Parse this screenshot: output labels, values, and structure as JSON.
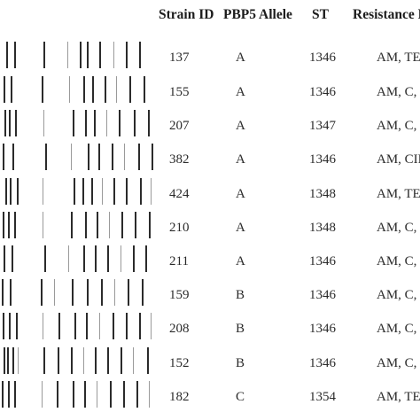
{
  "table": {
    "headers": {
      "strain_id": "Strain ID",
      "pbp5_allele": "PBP5 Allele",
      "st": "ST",
      "resistance": "Resistance P"
    },
    "rows": [
      {
        "strain_id": "137",
        "pbp5_allele": "A",
        "st": "1346",
        "resistance": "AM, TE"
      },
      {
        "strain_id": "155",
        "pbp5_allele": "A",
        "st": "1346",
        "resistance": "AM, C,"
      },
      {
        "strain_id": "207",
        "pbp5_allele": "A",
        "st": "1347",
        "resistance": "AM, C, T"
      },
      {
        "strain_id": "382",
        "pbp5_allele": "A",
        "st": "1346",
        "resistance": "AM, CIP"
      },
      {
        "strain_id": "424",
        "pbp5_allele": "A",
        "st": "1348",
        "resistance": "AM, TE"
      },
      {
        "strain_id": "210",
        "pbp5_allele": "A",
        "st": "1348",
        "resistance": "AM, C,"
      },
      {
        "strain_id": "211",
        "pbp5_allele": "A",
        "st": "1346",
        "resistance": "AM, C,"
      },
      {
        "strain_id": "159",
        "pbp5_allele": "B",
        "st": "1346",
        "resistance": "AM, C,"
      },
      {
        "strain_id": "208",
        "pbp5_allele": "B",
        "st": "1346",
        "resistance": "AM, C, T"
      },
      {
        "strain_id": "152",
        "pbp5_allele": "B",
        "st": "1346",
        "resistance": "AM, C, T"
      },
      {
        "strain_id": "182",
        "pbp5_allele": "C",
        "st": "1354",
        "resistance": "AM, TE"
      }
    ]
  },
  "gel_colors": {
    "band": "#2b2b2b",
    "faint_band": "#9a9a9a"
  }
}
